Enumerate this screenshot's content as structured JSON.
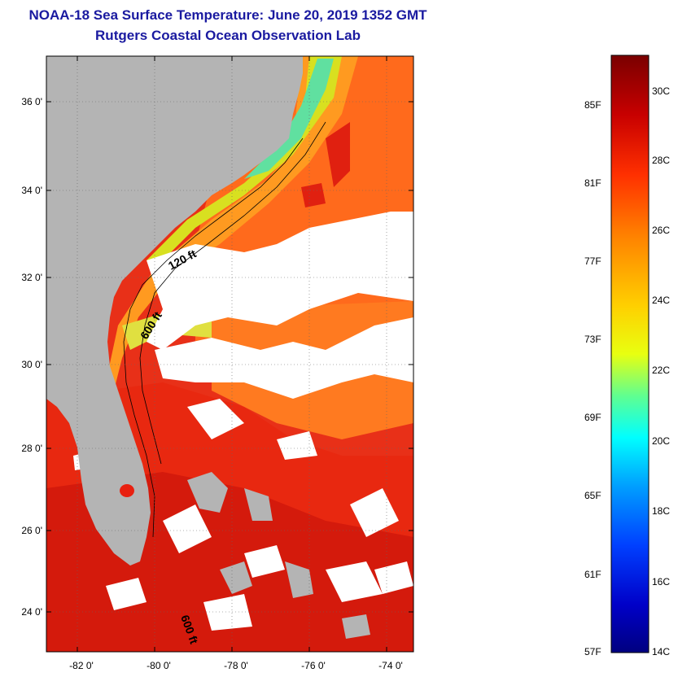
{
  "header": {
    "title": "NOAA-18 Sea Surface Temperature:  June 20, 2019 1352 GMT",
    "subtitle": "Rutgers Coastal Ocean Observation Lab"
  },
  "map": {
    "lat_ticks": [
      "36 0'",
      "34 0'",
      "32 0'",
      "30 0'",
      "28 0'",
      "26 0'",
      "24 0'"
    ],
    "lon_ticks": [
      "-82 0'",
      "-80 0'",
      "-78 0'",
      "-76 0'",
      "-74 0'"
    ],
    "contours": [
      "120 ft",
      "600 ft",
      "600 ft"
    ],
    "colors": {
      "land": "#b4b4b4",
      "cloud": "#ffffff",
      "warm": "#e82a10",
      "hot": "#d51a0c",
      "shelf": "#ff8a1a"
    }
  },
  "colorbar": {
    "fahrenheit": [
      "85F",
      "81F",
      "77F",
      "73F",
      "69F",
      "65F",
      "61F",
      "57F"
    ],
    "celsius": [
      "30C",
      "28C",
      "26C",
      "24C",
      "22C",
      "20C",
      "18C",
      "16C",
      "14C"
    ],
    "gradient": [
      "#7a0000",
      "#c80000",
      "#ff3000",
      "#ff8000",
      "#ffd000",
      "#e8ff10",
      "#60ff90",
      "#00ffff",
      "#00a0ff",
      "#0040ff",
      "#0000c8",
      "#000080"
    ]
  }
}
